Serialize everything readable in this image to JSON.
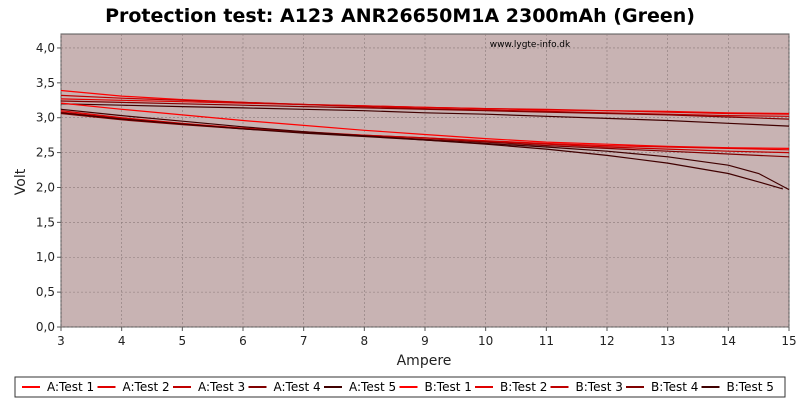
{
  "chart_data": {
    "type": "line",
    "title": "Protection test: A123 ANR26650M1A 2300mAh (Green)",
    "watermark": "www.lygte-info.dk",
    "xlabel": "Ampere",
    "ylabel": "Volt",
    "xlim": [
      3,
      15
    ],
    "ylim": [
      0,
      4.2
    ],
    "x_ticks": [
      "3",
      "4",
      "5",
      "6",
      "7",
      "8",
      "9",
      "10",
      "11",
      "12",
      "13",
      "14",
      "15"
    ],
    "y_ticks": [
      "0,0",
      "0,5",
      "1,0",
      "1,5",
      "2,0",
      "2,5",
      "3,0",
      "3,5",
      "4,0"
    ],
    "grid": true,
    "legend_position": "bottom",
    "plot_background": "#c8b3b3",
    "series": [
      {
        "name": "A:Test 1",
        "color": "#ff0000",
        "x": [
          3,
          4,
          5,
          6,
          7,
          8,
          9,
          10,
          11,
          12,
          13,
          14,
          15
        ],
        "y": [
          3.39,
          3.31,
          3.26,
          3.22,
          3.19,
          3.17,
          3.15,
          3.13,
          3.11,
          3.1,
          3.09,
          3.07,
          3.06
        ]
      },
      {
        "name": "A:Test 2",
        "color": "#e00000",
        "x": [
          3,
          4,
          5,
          6,
          7,
          8,
          9,
          10,
          11,
          12,
          13,
          14,
          15
        ],
        "y": [
          3.27,
          3.25,
          3.23,
          3.21,
          3.19,
          3.17,
          3.15,
          3.13,
          3.12,
          3.1,
          3.08,
          3.06,
          3.05
        ]
      },
      {
        "name": "A:Test 3",
        "color": "#c00000",
        "x": [
          3,
          4,
          5,
          6,
          7,
          8,
          9,
          10,
          11,
          12,
          13,
          14,
          15
        ],
        "y": [
          3.32,
          3.28,
          3.25,
          3.22,
          3.19,
          3.16,
          3.13,
          3.11,
          3.09,
          3.07,
          3.05,
          3.03,
          3.02
        ]
      },
      {
        "name": "A:Test 4",
        "color": "#800000",
        "x": [
          3,
          4,
          5,
          6,
          7,
          8,
          9,
          10,
          11,
          12,
          13,
          14,
          15
        ],
        "y": [
          3.24,
          3.22,
          3.2,
          3.18,
          3.16,
          3.14,
          3.12,
          3.1,
          3.08,
          3.06,
          3.04,
          3.01,
          2.98
        ]
      },
      {
        "name": "A:Test 5",
        "color": "#400000",
        "x": [
          3,
          4,
          5,
          6,
          7,
          8,
          9,
          10,
          11,
          12,
          13,
          14,
          15
        ],
        "y": [
          3.2,
          3.18,
          3.16,
          3.14,
          3.12,
          3.1,
          3.07,
          3.05,
          3.02,
          2.99,
          2.96,
          2.92,
          2.88
        ]
      },
      {
        "name": "B:Test 1",
        "color": "#ff0000",
        "x": [
          3,
          4,
          5,
          6,
          7,
          8,
          9,
          10,
          11,
          12,
          13,
          14,
          15
        ],
        "y": [
          3.21,
          3.12,
          3.04,
          2.96,
          2.89,
          2.82,
          2.76,
          2.7,
          2.65,
          2.62,
          2.59,
          2.57,
          2.56
        ]
      },
      {
        "name": "B:Test 2",
        "color": "#e00000",
        "x": [
          3,
          4,
          5,
          6,
          7,
          8,
          9,
          10,
          11,
          12,
          13,
          14,
          15
        ],
        "y": [
          3.1,
          3.0,
          2.92,
          2.85,
          2.79,
          2.75,
          2.71,
          2.67,
          2.63,
          2.6,
          2.58,
          2.56,
          2.54
        ]
      },
      {
        "name": "B:Test 3",
        "color": "#c00000",
        "x": [
          3,
          4,
          5,
          6,
          7,
          8,
          9,
          10,
          11,
          12,
          13,
          14,
          15
        ],
        "y": [
          3.08,
          2.99,
          2.91,
          2.85,
          2.8,
          2.75,
          2.71,
          2.66,
          2.62,
          2.58,
          2.55,
          2.52,
          2.5
        ]
      },
      {
        "name": "B:Test 4",
        "color": "#800000",
        "x": [
          3,
          4,
          5,
          6,
          7,
          8,
          9,
          10,
          11,
          12,
          13,
          14,
          15
        ],
        "y": [
          3.06,
          2.97,
          2.9,
          2.84,
          2.79,
          2.74,
          2.69,
          2.65,
          2.6,
          2.56,
          2.52,
          2.48,
          2.44
        ]
      },
      {
        "name": "B:Test 5",
        "color": "#400000",
        "x": [
          3,
          4,
          5,
          6,
          7,
          8,
          9,
          10,
          11,
          12,
          13,
          14,
          14.5,
          15
        ],
        "y": [
          3.12,
          3.03,
          2.95,
          2.87,
          2.8,
          2.74,
          2.68,
          2.63,
          2.58,
          2.52,
          2.44,
          2.32,
          2.2,
          1.97
        ]
      },
      {
        "name": "",
        "color": "#400000",
        "x": [
          3,
          4,
          5,
          6,
          7,
          8,
          9,
          10,
          11,
          12,
          13,
          14,
          14.5,
          14.9
        ],
        "y": [
          3.07,
          2.98,
          2.91,
          2.84,
          2.78,
          2.73,
          2.68,
          2.62,
          2.55,
          2.46,
          2.35,
          2.2,
          2.08,
          1.98
        ]
      }
    ]
  }
}
